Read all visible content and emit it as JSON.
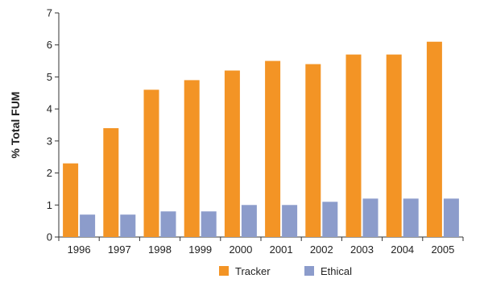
{
  "chart_data": {
    "type": "bar",
    "title": "",
    "xlabel": "",
    "ylabel": "% Total FUM",
    "categories": [
      "1996",
      "1997",
      "1998",
      "1999",
      "2000",
      "2001",
      "2002",
      "2003",
      "2004",
      "2005"
    ],
    "series": [
      {
        "name": "Tracker",
        "color": "#F39425",
        "values": [
          2.3,
          3.4,
          4.6,
          4.9,
          5.2,
          5.5,
          5.4,
          5.7,
          5.7,
          6.1
        ]
      },
      {
        "name": "Ethical",
        "color": "#8C9CCB",
        "values": [
          0.7,
          0.7,
          0.8,
          0.8,
          1.0,
          1.0,
          1.1,
          1.2,
          1.2,
          1.2
        ]
      }
    ],
    "ylim": [
      0,
      7
    ],
    "yticks": [
      0,
      1,
      2,
      3,
      4,
      5,
      6,
      7
    ],
    "grid": false,
    "legend_position": "bottom-center"
  }
}
